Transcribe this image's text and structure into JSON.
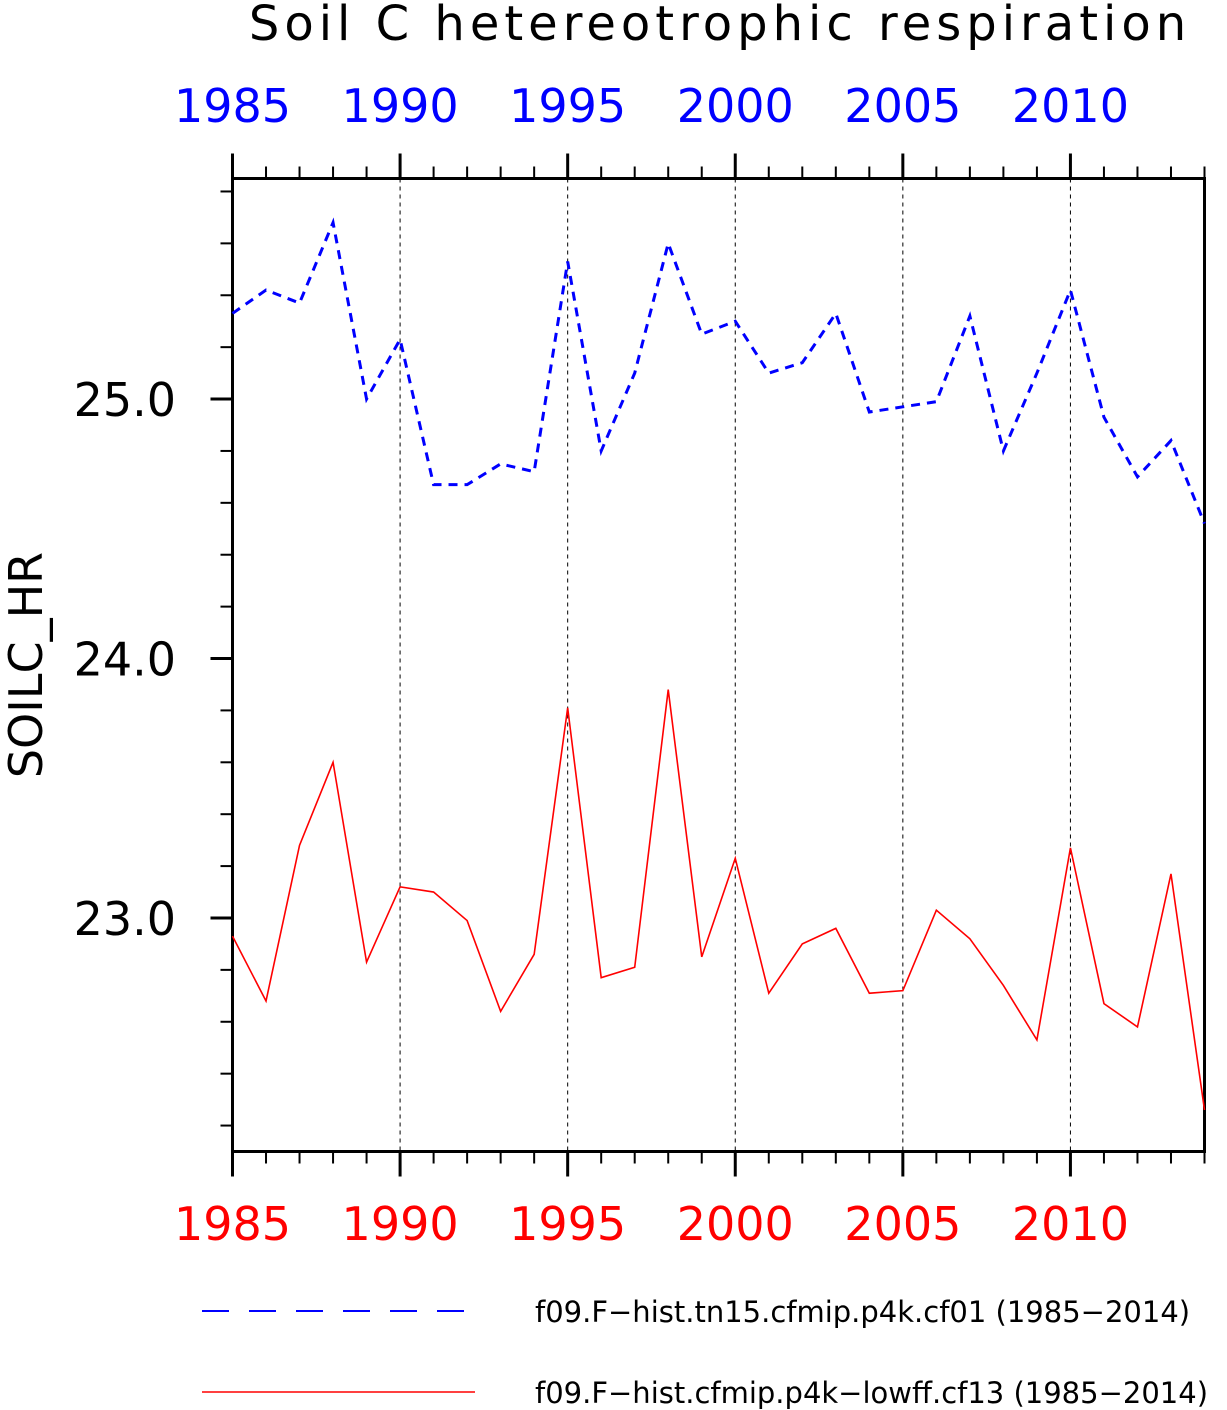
{
  "chart_data": {
    "type": "line",
    "title": "Soil C hetereotrophic respiration",
    "ylabel": "SOILC_HR",
    "xlim": [
      1985,
      2014
    ],
    "ylim": [
      22.1,
      25.85
    ],
    "yticks": [
      23.0,
      24.0,
      25.0
    ],
    "ytick_labels": [
      "23.0",
      "24.0",
      "25.0"
    ],
    "xticks": [
      1985,
      1990,
      1995,
      2000,
      2005,
      2010
    ],
    "xtick_labels": [
      "1985",
      "1990",
      "1995",
      "2000",
      "2005",
      "2010"
    ],
    "top_axis_color": "#0000ff",
    "bottom_axis_color": "#ff0000",
    "vertical_grid": "dashed, at labeled years",
    "legend_position": "bottom",
    "x": [
      1985,
      1986,
      1987,
      1988,
      1989,
      1990,
      1991,
      1992,
      1993,
      1994,
      1995,
      1996,
      1997,
      1998,
      1999,
      2000,
      2001,
      2002,
      2003,
      2004,
      2005,
      2006,
      2007,
      2008,
      2009,
      2010,
      2011,
      2012,
      2013,
      2014
    ],
    "series": [
      {
        "name": "f09.F−hist.tn15.cfmip.p4k.cf01 (1985−2014)",
        "color": "#0000ff",
        "style": "dashed",
        "values": [
          25.33,
          25.42,
          25.37,
          25.68,
          25.0,
          25.23,
          24.67,
          24.67,
          24.75,
          24.72,
          25.53,
          24.8,
          25.1,
          25.6,
          25.25,
          25.3,
          25.1,
          25.14,
          25.33,
          24.95,
          24.97,
          24.99,
          25.32,
          24.8,
          25.1,
          25.42,
          24.93,
          24.7,
          24.84,
          24.52
        ]
      },
      {
        "name": "f09.F−hist.cfmip.p4k−lowff.cf13 (1985−2014)",
        "color": "#ff0000",
        "style": "solid",
        "values": [
          22.93,
          22.68,
          23.28,
          23.6,
          22.83,
          23.12,
          23.1,
          22.99,
          22.64,
          22.86,
          23.81,
          22.77,
          22.81,
          23.88,
          22.85,
          23.23,
          22.71,
          22.9,
          22.96,
          22.71,
          22.72,
          23.03,
          22.92,
          22.74,
          22.53,
          23.27,
          22.67,
          22.58,
          23.17,
          22.26
        ]
      }
    ]
  }
}
